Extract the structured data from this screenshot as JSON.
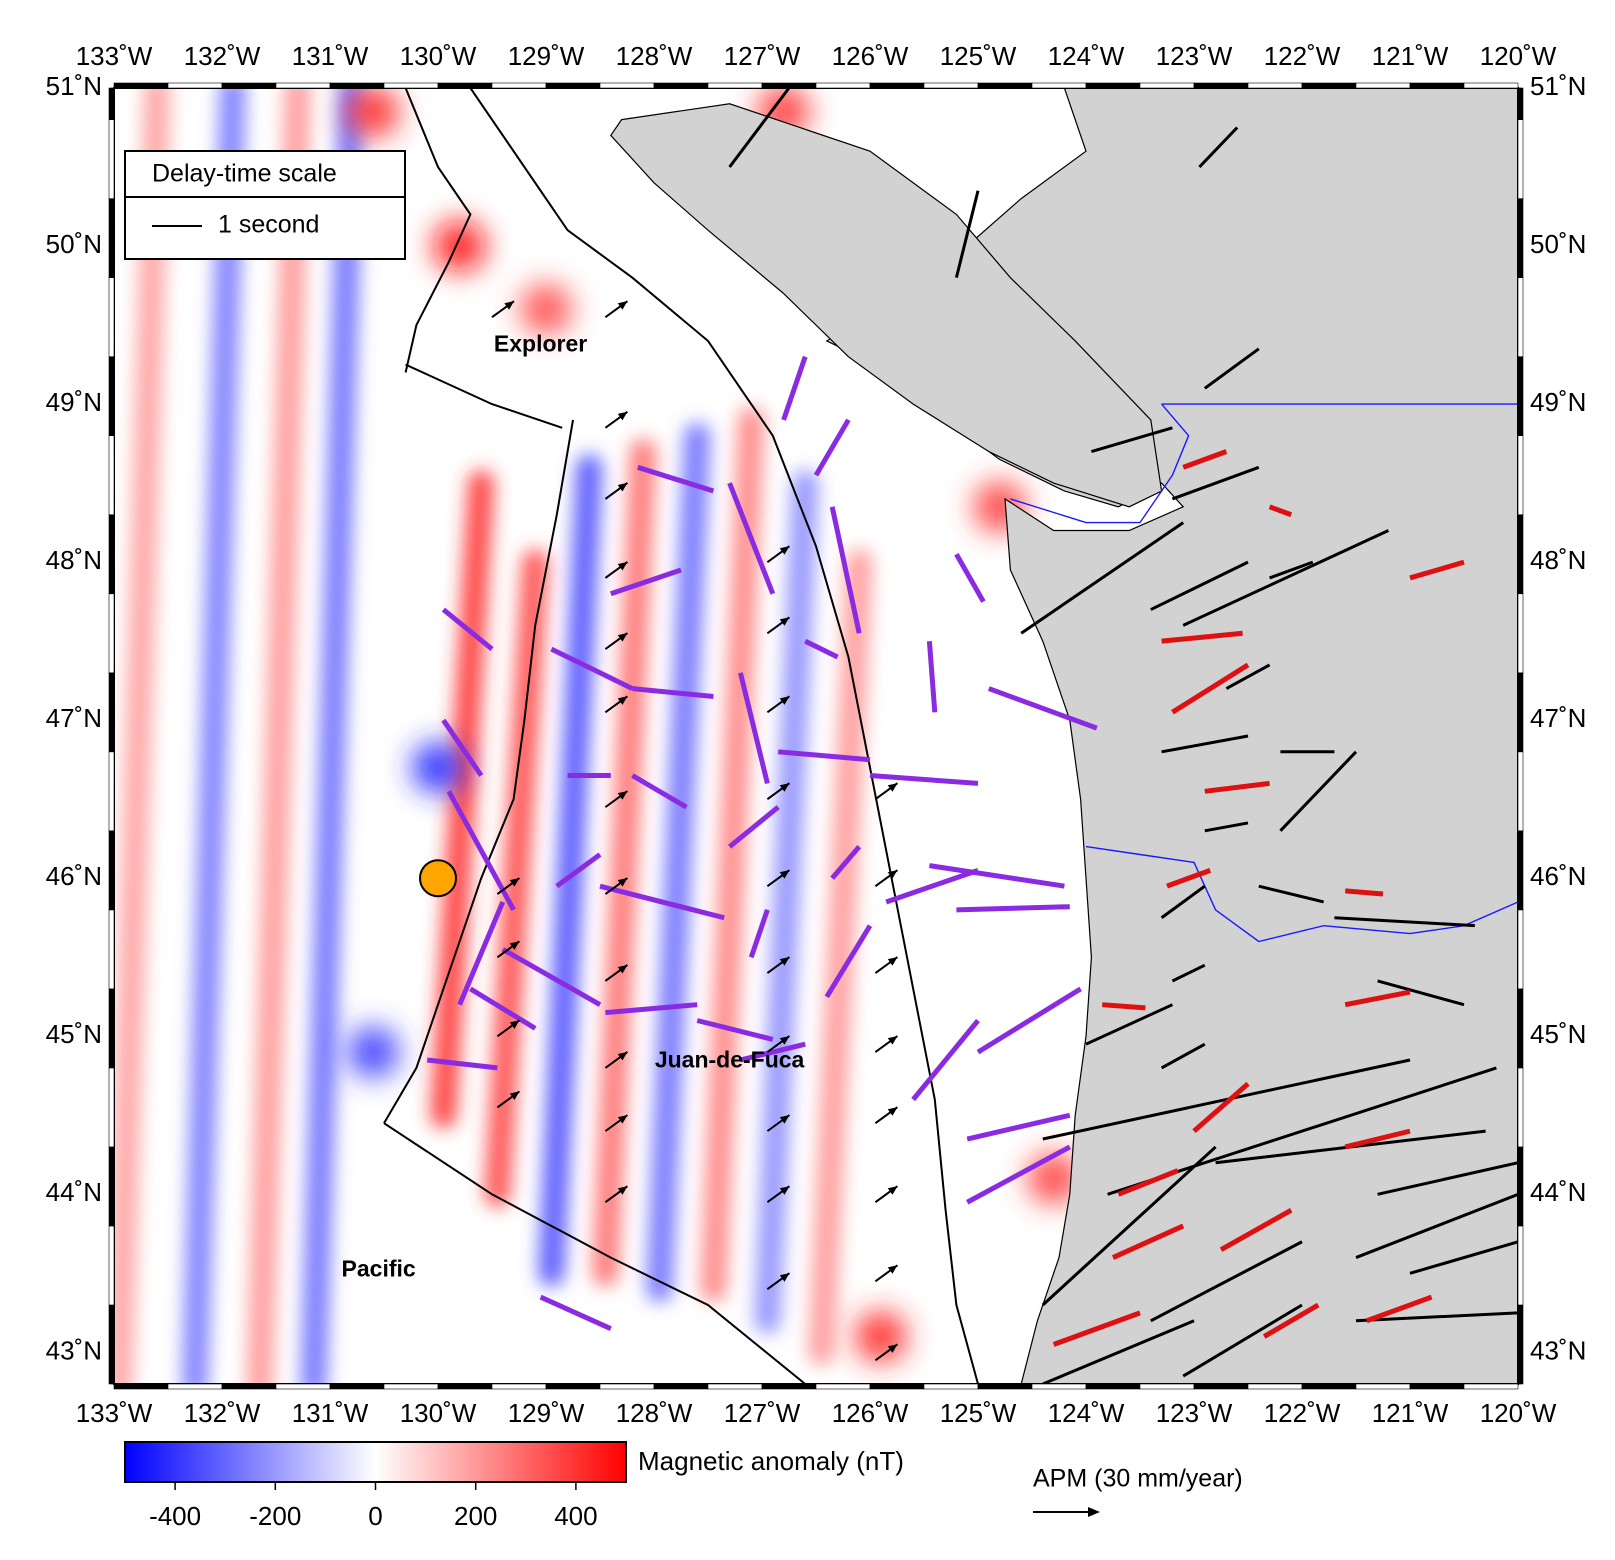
{
  "map": {
    "lon_range": [
      -133,
      -120
    ],
    "lat_range": [
      42.8,
      51
    ],
    "colors": {
      "land": "#d2d2d2",
      "negative": "#0000ff",
      "positive": "#ff0000",
      "neutral": "#ffffff",
      "splitting_ocean": "#8a2be2",
      "splitting_land_red": "#dd1111",
      "splitting_land_black": "#000000",
      "station": "#ffa500",
      "border": "#1a1aff"
    },
    "lon_ticks": [
      {
        "value": -133,
        "label": "133˚W"
      },
      {
        "value": -132,
        "label": "132˚W"
      },
      {
        "value": -131,
        "label": "131˚W"
      },
      {
        "value": -130,
        "label": "130˚W"
      },
      {
        "value": -129,
        "label": "129˚W"
      },
      {
        "value": -128,
        "label": "128˚W"
      },
      {
        "value": -127,
        "label": "127˚W"
      },
      {
        "value": -126,
        "label": "126˚W"
      },
      {
        "value": -125,
        "label": "125˚W"
      },
      {
        "value": -124,
        "label": "124˚W"
      },
      {
        "value": -123,
        "label": "123˚W"
      },
      {
        "value": -122,
        "label": "122˚W"
      },
      {
        "value": -121,
        "label": "121˚W"
      },
      {
        "value": -120,
        "label": "120˚W"
      }
    ],
    "lat_ticks": [
      {
        "value": 51,
        "label": "51˚N"
      },
      {
        "value": 50,
        "label": "50˚N"
      },
      {
        "value": 49,
        "label": "49˚N"
      },
      {
        "value": 48,
        "label": "48˚N"
      },
      {
        "value": 47,
        "label": "47˚N"
      },
      {
        "value": 46,
        "label": "46˚N"
      },
      {
        "value": 45,
        "label": "45˚N"
      },
      {
        "value": 44,
        "label": "44˚N"
      },
      {
        "value": 43,
        "label": "43˚N"
      }
    ],
    "plate_labels": [
      {
        "name": "Explorer",
        "lon": -129.05,
        "lat": 49.37
      },
      {
        "name": "Juan-de-Fuca",
        "lon": -127.3,
        "lat": 44.84
      },
      {
        "name": "Pacific",
        "lon": -130.55,
        "lat": 43.52
      }
    ],
    "station": {
      "lon": -130.0,
      "lat": 46.0
    },
    "coastline": [
      [
        -124.2,
        51
      ],
      [
        -124.0,
        50.6
      ],
      [
        -124.6,
        50.3
      ],
      [
        -125.1,
        50.0
      ],
      [
        -125.7,
        49.7
      ],
      [
        -126.4,
        49.4
      ],
      [
        -125.8,
        49.2
      ],
      [
        -125.4,
        48.95
      ],
      [
        -124.8,
        48.65
      ],
      [
        -124.2,
        48.45
      ],
      [
        -123.7,
        48.35
      ],
      [
        -123.3,
        48.5
      ],
      [
        -123.1,
        48.35
      ],
      [
        -123.6,
        48.2
      ],
      [
        -124.3,
        48.2
      ],
      [
        -124.75,
        48.4
      ],
      [
        -124.7,
        47.95
      ],
      [
        -124.4,
        47.5
      ],
      [
        -124.15,
        47.0
      ],
      [
        -124.05,
        46.5
      ],
      [
        -124.0,
        46.0
      ],
      [
        -123.95,
        45.5
      ],
      [
        -124.0,
        45.0
      ],
      [
        -124.1,
        44.5
      ],
      [
        -124.15,
        44.0
      ],
      [
        -124.25,
        43.6
      ],
      [
        -124.45,
        43.2
      ],
      [
        -124.6,
        42.8
      ]
    ],
    "vancouver_island": [
      [
        -128.3,
        50.8
      ],
      [
        -127.3,
        50.9
      ],
      [
        -126.0,
        50.6
      ],
      [
        -125.2,
        50.2
      ],
      [
        -124.7,
        49.8
      ],
      [
        -124.1,
        49.4
      ],
      [
        -123.4,
        48.9
      ],
      [
        -123.3,
        48.45
      ],
      [
        -123.6,
        48.35
      ],
      [
        -124.3,
        48.5
      ],
      [
        -124.9,
        48.7
      ],
      [
        -125.6,
        49.0
      ],
      [
        -126.2,
        49.3
      ],
      [
        -126.8,
        49.7
      ],
      [
        -127.5,
        50.1
      ],
      [
        -128.0,
        50.4
      ],
      [
        -128.4,
        50.7
      ]
    ],
    "border_lines": [
      [
        [
          -123.3,
          49.0
        ],
        [
          -120.0,
          49.0
        ]
      ],
      [
        [
          -124.7,
          48.4
        ],
        [
          -124.0,
          48.25
        ],
        [
          -123.5,
          48.25
        ],
        [
          -123.2,
          48.55
        ],
        [
          -123.05,
          48.8
        ],
        [
          -123.3,
          49.0
        ]
      ],
      [
        [
          -124.0,
          46.2
        ],
        [
          -123.5,
          46.15
        ],
        [
          -123.0,
          46.1
        ],
        [
          -122.8,
          45.8
        ],
        [
          -122.4,
          45.6
        ],
        [
          -121.8,
          45.7
        ],
        [
          -121.0,
          45.65
        ],
        [
          -120.5,
          45.7
        ],
        [
          -120.0,
          45.85
        ]
      ]
    ],
    "plate_boundaries": [
      [
        [
          -130.3,
          51.0
        ],
        [
          -130.0,
          50.5
        ],
        [
          -129.7,
          50.2
        ],
        [
          -129.9,
          49.9
        ],
        [
          -130.2,
          49.5
        ],
        [
          -130.3,
          49.2
        ]
      ],
      [
        [
          -130.3,
          49.25
        ],
        [
          -129.5,
          49.0
        ],
        [
          -128.85,
          48.85
        ]
      ],
      [
        [
          -128.75,
          48.9
        ],
        [
          -128.9,
          48.3
        ],
        [
          -129.1,
          47.6
        ],
        [
          -129.2,
          47.0
        ],
        [
          -129.3,
          46.5
        ],
        [
          -129.6,
          46.0
        ],
        [
          -129.9,
          45.4
        ],
        [
          -130.2,
          44.8
        ],
        [
          -130.5,
          44.45
        ]
      ],
      [
        [
          -130.5,
          44.45
        ],
        [
          -129.5,
          44.0
        ],
        [
          -128.4,
          43.6
        ],
        [
          -127.5,
          43.3
        ],
        [
          -126.6,
          42.8
        ]
      ],
      [
        [
          -129.7,
          51.0
        ],
        [
          -129.2,
          50.5
        ],
        [
          -128.8,
          50.1
        ],
        [
          -128.2,
          49.8
        ],
        [
          -127.5,
          49.4
        ],
        [
          -126.9,
          48.8
        ],
        [
          -126.5,
          48.1
        ],
        [
          -126.2,
          47.4
        ],
        [
          -126.0,
          46.7
        ],
        [
          -125.8,
          46.0
        ],
        [
          -125.6,
          45.3
        ],
        [
          -125.4,
          44.6
        ],
        [
          -125.3,
          43.9
        ],
        [
          -125.2,
          43.3
        ],
        [
          -125.0,
          42.8
        ]
      ]
    ],
    "anomaly_bands": [
      {
        "lon": -131.9,
        "lat1": 51.0,
        "lat2": 42.8,
        "value": -280
      },
      {
        "lon": -131.3,
        "lat1": 51.0,
        "lat2": 42.8,
        "value": 220
      },
      {
        "lon": -130.8,
        "lat1": 51.0,
        "lat2": 42.8,
        "value": -300
      },
      {
        "lon": -129.6,
        "lat1": 48.5,
        "lat2": 44.5,
        "value": 420
      },
      {
        "lon": -129.1,
        "lat1": 48.0,
        "lat2": 44.0,
        "value": 380
      },
      {
        "lon": -128.6,
        "lat1": 48.6,
        "lat2": 43.5,
        "value": -360
      },
      {
        "lon": -128.1,
        "lat1": 48.7,
        "lat2": 43.5,
        "value": 300
      },
      {
        "lon": -127.6,
        "lat1": 48.8,
        "lat2": 43.4,
        "value": -300
      },
      {
        "lon": -127.1,
        "lat1": 48.9,
        "lat2": 43.4,
        "value": 260
      },
      {
        "lon": -126.6,
        "lat1": 48.5,
        "lat2": 43.2,
        "value": -240
      },
      {
        "lon": -126.1,
        "lat1": 48.0,
        "lat2": 43.0,
        "value": 220
      },
      {
        "lon": -132.6,
        "lat1": 51.0,
        "lat2": 42.8,
        "value": 200
      }
    ],
    "anomaly_spots": [
      {
        "lon": -129.8,
        "lat": 50.0,
        "value": 480
      },
      {
        "lon": -130.6,
        "lat": 50.85,
        "value": 420
      },
      {
        "lon": -126.8,
        "lat": 50.85,
        "value": 400
      },
      {
        "lon": -124.3,
        "lat": 44.1,
        "value": 380
      },
      {
        "lon": -125.9,
        "lat": 43.1,
        "value": 420
      },
      {
        "lon": -129.0,
        "lat": 49.6,
        "value": 350
      },
      {
        "lon": -124.2,
        "lat": 49.6,
        "value": 420
      },
      {
        "lon": -124.8,
        "lat": 48.35,
        "value": 380
      },
      {
        "lon": -130.0,
        "lat": 46.7,
        "value": -420
      },
      {
        "lon": -130.6,
        "lat": 44.9,
        "value": -380
      }
    ],
    "splitting_ocean": [
      [
        -129.5,
        47.45,
        -129.95,
        47.7
      ],
      [
        -129.6,
        46.65,
        -129.95,
        47.0
      ],
      [
        -129.3,
        45.8,
        -129.9,
        46.55
      ],
      [
        -129.8,
        45.2,
        -129.4,
        45.85
      ],
      [
        -129.1,
        45.05,
        -129.7,
        45.3
      ],
      [
        -128.5,
        45.2,
        -129.4,
        45.55
      ],
      [
        -129.45,
        44.8,
        -130.1,
        44.85
      ],
      [
        -128.8,
        46.65,
        -128.4,
        46.65
      ],
      [
        -128.9,
        45.95,
        -128.5,
        46.15
      ],
      [
        -128.45,
        45.15,
        -127.6,
        45.2
      ],
      [
        -127.6,
        45.1,
        -126.9,
        44.98
      ],
      [
        -128.5,
        45.95,
        -127.35,
        45.75
      ],
      [
        -128.2,
        47.2,
        -127.45,
        47.15
      ],
      [
        -128.95,
        47.45,
        -128.2,
        47.2
      ],
      [
        -128.4,
        47.8,
        -127.75,
        47.95
      ],
      [
        -128.15,
        48.6,
        -127.45,
        48.45
      ],
      [
        -128.2,
        46.65,
        -127.7,
        46.45
      ],
      [
        -127.3,
        48.5,
        -126.9,
        47.8
      ],
      [
        -127.2,
        47.3,
        -126.95,
        46.6
      ],
      [
        -127.3,
        46.2,
        -126.85,
        46.45
      ],
      [
        -127.1,
        45.5,
        -126.95,
        45.8
      ],
      [
        -127.2,
        44.85,
        -126.6,
        44.95
      ],
      [
        -126.8,
        48.9,
        -126.6,
        49.3
      ],
      [
        -126.5,
        48.55,
        -126.2,
        48.9
      ],
      [
        -126.35,
        48.35,
        -126.1,
        47.55
      ],
      [
        -126.6,
        47.5,
        -126.3,
        47.4
      ],
      [
        -126.85,
        46.8,
        -126.0,
        46.75
      ],
      [
        -126.35,
        46.0,
        -126.1,
        46.2
      ],
      [
        -126.4,
        45.25,
        -126.0,
        45.7
      ],
      [
        -126.0,
        46.65,
        -125.0,
        46.6
      ],
      [
        -125.85,
        45.85,
        -125.0,
        46.05
      ],
      [
        -125.45,
        46.08,
        -124.2,
        45.95
      ],
      [
        -125.2,
        45.8,
        -124.15,
        45.82
      ],
      [
        -125.6,
        44.6,
        -125.0,
        45.1
      ],
      [
        -125.0,
        44.9,
        -124.05,
        45.3
      ],
      [
        -125.1,
        44.35,
        -124.15,
        44.5
      ],
      [
        -125.1,
        43.95,
        -124.15,
        44.3
      ],
      [
        -125.2,
        48.05,
        -124.95,
        47.75
      ],
      [
        -124.9,
        47.2,
        -123.9,
        46.95
      ],
      [
        -125.45,
        47.5,
        -125.4,
        47.05
      ],
      [
        -129.05,
        43.35,
        -128.4,
        43.15
      ]
    ],
    "splitting_land_red": [
      [
        -122.7,
        48.7,
        -123.1,
        48.6
      ],
      [
        -122.1,
        48.3,
        -122.3,
        48.35
      ],
      [
        -123.3,
        47.5,
        -122.55,
        47.55
      ],
      [
        -122.5,
        47.35,
        -123.2,
        47.05
      ],
      [
        -121.0,
        47.9,
        -120.5,
        48.0
      ],
      [
        -122.9,
        46.55,
        -122.3,
        46.6
      ],
      [
        -122.85,
        46.05,
        -123.25,
        45.95
      ],
      [
        -121.6,
        45.92,
        -121.25,
        45.9
      ],
      [
        -123.45,
        45.18,
        -123.85,
        45.2
      ],
      [
        -121.0,
        45.28,
        -121.6,
        45.2
      ],
      [
        -122.5,
        44.7,
        -123.0,
        44.4
      ],
      [
        -123.7,
        44.0,
        -123.15,
        44.15
      ],
      [
        -121.6,
        44.3,
        -121.0,
        44.4
      ],
      [
        -122.75,
        43.65,
        -122.1,
        43.9
      ],
      [
        -123.75,
        43.6,
        -123.1,
        43.8
      ],
      [
        -124.3,
        43.05,
        -123.5,
        43.25
      ],
      [
        -121.4,
        43.2,
        -120.8,
        43.35
      ],
      [
        -122.35,
        43.1,
        -121.85,
        43.3
      ]
    ],
    "splitting_land_black": [
      [
        -127.3,
        50.5,
        -126.75,
        51.0
      ],
      [
        -122.95,
        50.5,
        -122.6,
        50.75
      ],
      [
        -125.2,
        49.8,
        -125.0,
        50.35
      ],
      [
        -122.9,
        49.1,
        -122.4,
        49.35
      ],
      [
        -123.95,
        48.7,
        -123.2,
        48.85
      ],
      [
        -123.2,
        48.4,
        -122.4,
        48.6
      ],
      [
        -124.6,
        47.55,
        -123.1,
        48.25
      ],
      [
        -123.4,
        47.7,
        -122.5,
        48.0
      ],
      [
        -123.1,
        47.6,
        -121.2,
        48.2
      ],
      [
        -122.3,
        47.9,
        -121.9,
        48.0
      ],
      [
        -122.7,
        47.2,
        -122.3,
        47.35
      ],
      [
        -122.2,
        46.8,
        -121.7,
        46.8
      ],
      [
        -122.2,
        46.3,
        -121.5,
        46.8
      ],
      [
        -123.3,
        46.8,
        -122.5,
        46.9
      ],
      [
        -122.9,
        46.3,
        -122.5,
        46.35
      ],
      [
        -123.3,
        45.75,
        -122.9,
        45.95
      ],
      [
        -122.4,
        45.95,
        -121.8,
        45.85
      ],
      [
        -121.7,
        45.75,
        -120.4,
        45.7
      ],
      [
        -123.2,
        45.35,
        -122.9,
        45.45
      ],
      [
        -121.3,
        45.35,
        -120.5,
        45.2
      ],
      [
        -124.0,
        44.95,
        -123.2,
        45.2
      ],
      [
        -123.3,
        44.8,
        -122.9,
        44.95
      ],
      [
        -124.4,
        44.35,
        -121.0,
        44.85
      ],
      [
        -123.8,
        44.0,
        -120.2,
        44.8
      ],
      [
        -122.8,
        44.2,
        -120.3,
        44.4
      ],
      [
        -121.3,
        44.0,
        -120.0,
        44.2
      ],
      [
        -124.4,
        43.3,
        -122.8,
        44.3
      ],
      [
        -121.5,
        43.6,
        -120.0,
        44.0
      ],
      [
        -123.4,
        43.2,
        -122.0,
        43.7
      ],
      [
        -121.0,
        43.5,
        -120.0,
        43.7
      ],
      [
        -124.4,
        42.8,
        -123.0,
        43.2
      ],
      [
        -121.5,
        43.2,
        -120.0,
        43.25
      ],
      [
        -123.1,
        42.85,
        -122.0,
        43.3
      ]
    ],
    "apm_arrows": [
      [
        -129.5,
        49.55
      ],
      [
        -128.45,
        49.55
      ],
      [
        -128.45,
        48.85
      ],
      [
        -128.45,
        48.4
      ],
      [
        -128.45,
        47.9
      ],
      [
        -128.45,
        47.45
      ],
      [
        -128.45,
        47.05
      ],
      [
        -128.45,
        46.45
      ],
      [
        -128.45,
        45.9
      ],
      [
        -128.45,
        45.35
      ],
      [
        -128.45,
        44.8
      ],
      [
        -128.45,
        44.4
      ],
      [
        -128.45,
        43.95
      ],
      [
        -129.45,
        45.5
      ],
      [
        -129.45,
        45.9
      ],
      [
        -129.45,
        45.0
      ],
      [
        -129.45,
        44.55
      ],
      [
        -126.95,
        48.0
      ],
      [
        -126.95,
        47.55
      ],
      [
        -126.95,
        47.05
      ],
      [
        -126.95,
        46.5
      ],
      [
        -126.95,
        45.95
      ],
      [
        -126.95,
        45.4
      ],
      [
        -126.95,
        44.9
      ],
      [
        -126.95,
        44.4
      ],
      [
        -126.95,
        43.95
      ],
      [
        -126.95,
        43.4
      ],
      [
        -125.95,
        46.5
      ],
      [
        -125.95,
        45.95
      ],
      [
        -125.95,
        45.4
      ],
      [
        -125.95,
        44.9
      ],
      [
        -125.95,
        44.45
      ],
      [
        -125.95,
        43.95
      ],
      [
        -125.95,
        43.45
      ],
      [
        -125.95,
        42.95
      ]
    ]
  },
  "legend": {
    "title": "Delay-time scale",
    "line_label": "1 second"
  },
  "colorbar": {
    "title": "Magnetic anomaly (nT)",
    "min": -500,
    "max": 500,
    "ticks": [
      {
        "value": -400,
        "label": "-400"
      },
      {
        "value": -200,
        "label": "-200"
      },
      {
        "value": 0,
        "label": "0"
      },
      {
        "value": 200,
        "label": "200"
      },
      {
        "value": 400,
        "label": "400"
      }
    ]
  },
  "apm_legend": {
    "label": "APM (30 mm/year)"
  }
}
